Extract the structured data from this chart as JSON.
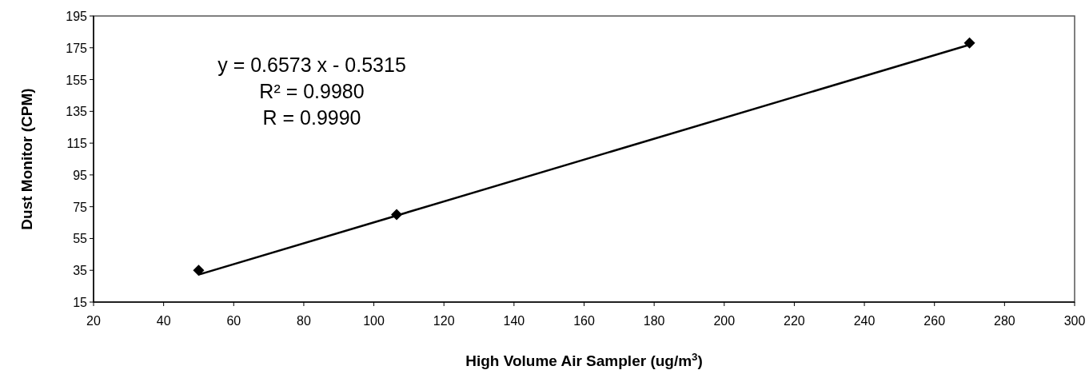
{
  "chart_data": {
    "type": "scatter",
    "xlabel": "High Volume Air Sampler (ug/m$^{3}$)",
    "ylabel": "Dust Monitor (CPM)",
    "xlim": [
      20,
      300
    ],
    "xticks": [
      20,
      40,
      60,
      80,
      100,
      120,
      140,
      160,
      180,
      200,
      220,
      240,
      260,
      280,
      300
    ],
    "ylim": [
      15,
      195
    ],
    "yticks": [
      15,
      35,
      55,
      75,
      95,
      115,
      135,
      155,
      175,
      195
    ],
    "marker": "diamond",
    "series": [
      {
        "color": "#000000",
        "x": [
          50,
          106.5,
          270
        ],
        "values": [
          35,
          70,
          178
        ]
      },
      {
        "type": "line",
        "color": "#000000",
        "marker": "none",
        "x": [
          50,
          270
        ],
        "values": [
          32.3,
          176.9
        ]
      }
    ],
    "annotations": [
      "y = 0.6573 x - 0.5315",
      "R² = 0.9980",
      "R = 0.9990"
    ]
  }
}
